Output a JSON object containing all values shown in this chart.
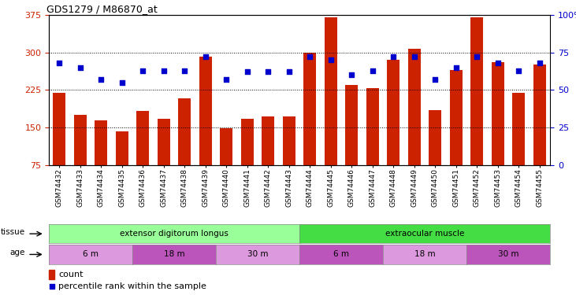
{
  "title": "GDS1279 / M86870_at",
  "samples": [
    "GSM74432",
    "GSM74433",
    "GSM74434",
    "GSM74435",
    "GSM74436",
    "GSM74437",
    "GSM74438",
    "GSM74439",
    "GSM74440",
    "GSM74441",
    "GSM74442",
    "GSM74443",
    "GSM74444",
    "GSM74445",
    "GSM74446",
    "GSM74447",
    "GSM74448",
    "GSM74449",
    "GSM74450",
    "GSM74451",
    "GSM74452",
    "GSM74453",
    "GSM74454",
    "GSM74455"
  ],
  "counts": [
    220,
    175,
    165,
    143,
    183,
    168,
    208,
    291,
    148,
    168,
    172,
    172,
    300,
    370,
    235,
    228,
    285,
    307,
    185,
    265,
    370,
    280,
    220,
    275
  ],
  "percentile_ranks": [
    68,
    65,
    57,
    55,
    63,
    63,
    63,
    72,
    57,
    62,
    62,
    62,
    72,
    70,
    60,
    63,
    72,
    72,
    57,
    65,
    72,
    68,
    63,
    68
  ],
  "ylim_left": [
    75,
    375
  ],
  "ylim_right": [
    0,
    100
  ],
  "yticks_left": [
    75,
    150,
    225,
    300,
    375
  ],
  "yticks_right": [
    0,
    25,
    50,
    75,
    100
  ],
  "bar_color": "#cc2200",
  "dot_color": "#0000cc",
  "tissue_groups": [
    {
      "label": "extensor digitorum longus",
      "start": 0,
      "end": 12,
      "color": "#99ff99"
    },
    {
      "label": "extraocular muscle",
      "start": 12,
      "end": 24,
      "color": "#44dd44"
    }
  ],
  "age_groups": [
    {
      "label": "6 m",
      "start": 0,
      "end": 4,
      "color": "#dd99dd"
    },
    {
      "label": "18 m",
      "start": 4,
      "end": 8,
      "color": "#cc55cc"
    },
    {
      "label": "30 m",
      "start": 8,
      "end": 12,
      "color": "#dd99dd"
    },
    {
      "label": "6 m",
      "start": 12,
      "end": 16,
      "color": "#cc55cc"
    },
    {
      "label": "18 m",
      "start": 16,
      "end": 20,
      "color": "#dd99dd"
    },
    {
      "label": "30 m",
      "start": 20,
      "end": 24,
      "color": "#cc55cc"
    }
  ],
  "legend_items": [
    {
      "label": "count",
      "color": "#cc2200"
    },
    {
      "label": "percentile rank within the sample",
      "color": "#0000cc"
    }
  ],
  "background_color": "#ffffff",
  "tick_label_color_left": "#cc2200",
  "tick_label_color_right": "#0000cc"
}
